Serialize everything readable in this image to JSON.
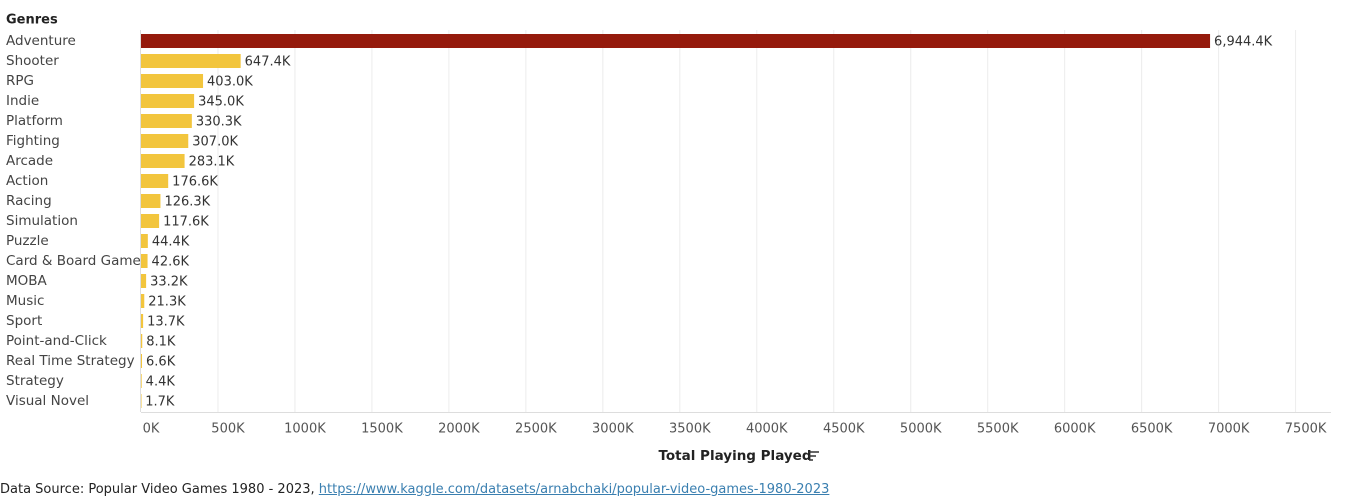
{
  "chart_data": {
    "type": "hbar",
    "category_axis_label": "Genres",
    "x_label": "Total Playing Played",
    "categories": [
      "Adventure",
      "Shooter",
      "RPG",
      "Indie",
      "Platform",
      "Fighting",
      "Arcade",
      "Action",
      "Racing",
      "Simulation",
      "Puzzle",
      "Card & Board Game",
      "MOBA",
      "Music",
      "Sport",
      "Point-and-Click",
      "Real Time Strategy",
      "Strategy",
      "Visual Novel"
    ],
    "values": [
      6944400,
      647400,
      403000,
      345000,
      330300,
      307000,
      283100,
      176600,
      126300,
      117600,
      44400,
      42600,
      33200,
      21300,
      13700,
      8100,
      6600,
      4400,
      1700
    ],
    "value_labels": [
      "6,944.4K",
      "647.4K",
      "403.0K",
      "345.0K",
      "330.3K",
      "307.0K",
      "283.1K",
      "176.6K",
      "126.3K",
      "117.6K",
      "44.4K",
      "42.6K",
      "33.2K",
      "21.3K",
      "13.7K",
      "8.1K",
      "6.6K",
      "4.4K",
      "1.7K"
    ],
    "colors": [
      "#951a0c",
      "#f2c53d",
      "#f2c53d",
      "#f2c53d",
      "#f2c53d",
      "#f2c53d",
      "#f2c53d",
      "#f2c53d",
      "#f2c53d",
      "#f2c53d",
      "#f2c53d",
      "#f2c53d",
      "#f2c53d",
      "#f2c53d",
      "#f2c53d",
      "#f2c53d",
      "#f2c53d",
      "#f2c53d",
      "#f2c53d"
    ],
    "xlim": [
      0,
      7730000
    ],
    "xticks": [
      {
        "value": 0,
        "label": "0K"
      },
      {
        "value": 500000,
        "label": "500K"
      },
      {
        "value": 1000000,
        "label": "1000K"
      },
      {
        "value": 1500000,
        "label": "1500K"
      },
      {
        "value": 2000000,
        "label": "2000K"
      },
      {
        "value": 2500000,
        "label": "2500K"
      },
      {
        "value": 3000000,
        "label": "3000K"
      },
      {
        "value": 3500000,
        "label": "3500K"
      },
      {
        "value": 4000000,
        "label": "4000K"
      },
      {
        "value": 4500000,
        "label": "4500K"
      },
      {
        "value": 5000000,
        "label": "5000K"
      },
      {
        "value": 5500000,
        "label": "5500K"
      },
      {
        "value": 6000000,
        "label": "6000K"
      },
      {
        "value": 6500000,
        "label": "6500K"
      },
      {
        "value": 7000000,
        "label": "7000K"
      },
      {
        "value": 7500000,
        "label": "7500K"
      }
    ],
    "grid": true,
    "source_label": "Data Source:",
    "source_name": "Popular Video Games 1980 - 2023,",
    "source_url": "https://www.kaggle.com/datasets/arnabchaki/popular-video-games-1980-2023"
  }
}
